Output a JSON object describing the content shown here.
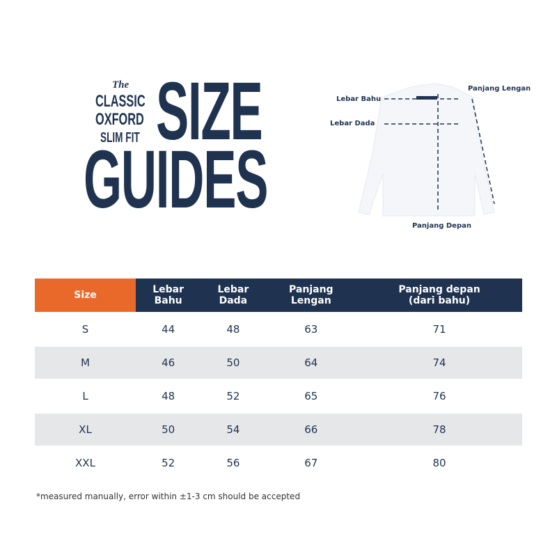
{
  "title": {
    "the": "The",
    "line1": "CLASSIC",
    "line2": "OXFORD",
    "line3": "SLIM FIT",
    "size": "SIZE",
    "guides": "GUIDES"
  },
  "diagram": {
    "lebar_bahu": "Lebar Bahu",
    "lebar_dada": "Lebar Dada",
    "panjang_lengan": "Panjang Lengan",
    "panjang_depan": "Panjang Depan"
  },
  "colors": {
    "navy": "#1f3350",
    "orange": "#e8692a",
    "row_alt": "#e6e7e9"
  },
  "table": {
    "headers": [
      {
        "l1": "Size",
        "l2": ""
      },
      {
        "l1": "Lebar",
        "l2": "Bahu"
      },
      {
        "l1": "Lebar",
        "l2": "Dada"
      },
      {
        "l1": "Panjang",
        "l2": "Lengan"
      },
      {
        "l1": "Panjang depan",
        "l2": "(dari bahu)"
      }
    ],
    "rows": [
      [
        "S",
        "44",
        "48",
        "63",
        "71"
      ],
      [
        "M",
        "46",
        "50",
        "64",
        "74"
      ],
      [
        "L",
        "48",
        "52",
        "65",
        "76"
      ],
      [
        "XL",
        "50",
        "54",
        "66",
        "78"
      ],
      [
        "XXL",
        "52",
        "56",
        "67",
        "80"
      ]
    ]
  },
  "footnote": "*measured manually, error within  ±1-3 cm should be accepted"
}
